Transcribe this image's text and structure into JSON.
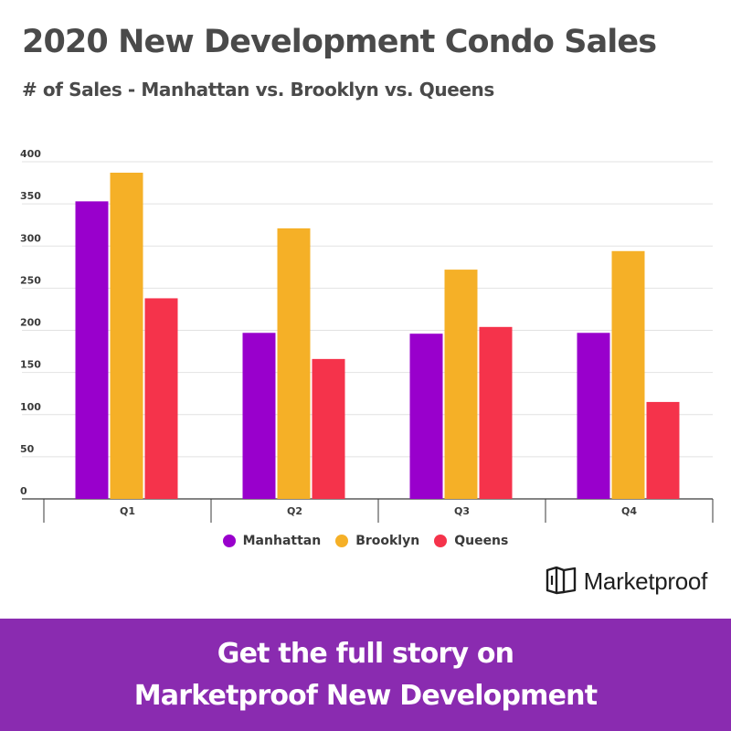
{
  "header": {
    "title": "2020 New Development Condo Sales",
    "subtitle": "# of Sales - Manhattan vs. Brooklyn vs. Queens"
  },
  "chart_data": {
    "type": "bar",
    "categories": [
      "Q1",
      "Q2",
      "Q3",
      "Q4"
    ],
    "series": [
      {
        "name": "Manhattan",
        "color": "#9900cc",
        "values": [
          353,
          197,
          196,
          197
        ]
      },
      {
        "name": "Brooklyn",
        "color": "#f5b027",
        "values": [
          387,
          321,
          272,
          294
        ]
      },
      {
        "name": "Queens",
        "color": "#f5334b",
        "values": [
          238,
          166,
          204,
          115
        ]
      }
    ],
    "ylim": [
      0,
      400
    ],
    "yticks": [
      0,
      50,
      100,
      150,
      200,
      250,
      300,
      350,
      400
    ],
    "grid": true,
    "legend_position": "bottom"
  },
  "brand": {
    "name": "Marketproof",
    "icon": "marketproof-logo-icon"
  },
  "banner": {
    "line1": "Get the full story on",
    "line2": "Marketproof New Development",
    "background": "#8a2bb0"
  }
}
